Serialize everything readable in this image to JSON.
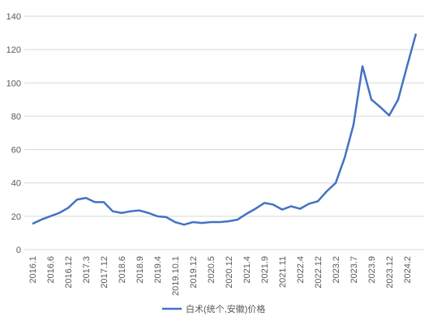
{
  "chart_data": {
    "type": "line",
    "categories": [
      "2016.1",
      null,
      "2016.6",
      null,
      "2016.12",
      null,
      "2017.3",
      null,
      "2017.12",
      null,
      "2018.6",
      null,
      "2018.9",
      null,
      "2019.4",
      null,
      "2019.10.1",
      null,
      "2019.12",
      null,
      "2020.5",
      null,
      "2020.12",
      null,
      "2021.4",
      null,
      "2021.9",
      null,
      "2021.11",
      null,
      "2022.4",
      null,
      "2022.12",
      null,
      "2023.2",
      null,
      "2023.7",
      null,
      "2023.9",
      null,
      "2023.12",
      null,
      "2024.2",
      null
    ],
    "series": [
      {
        "name": "白术(统个,安徽)价格",
        "color": "#4472c4",
        "values": [
          15.5,
          18,
          20,
          22,
          25,
          30,
          31,
          28.5,
          28.5,
          23,
          22,
          23,
          23.5,
          22,
          20,
          19.5,
          16.5,
          15,
          16.5,
          16,
          16.5,
          16.5,
          17,
          18,
          21.5,
          24.5,
          28,
          27,
          24,
          26,
          24.5,
          27.5,
          29,
          35,
          40,
          55,
          75,
          110,
          90,
          85.5,
          80.5,
          90,
          110,
          129.5
        ]
      }
    ],
    "ylim": [
      0,
      140
    ],
    "yticks": [
      0,
      20,
      40,
      60,
      80,
      100,
      120,
      140
    ],
    "legend": "bottom"
  }
}
